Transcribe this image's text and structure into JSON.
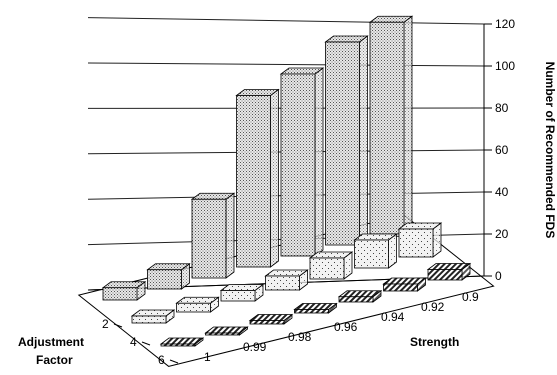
{
  "chart_data": {
    "type": "bar3d",
    "title": "",
    "zlabel": "Number of Recommended FDS",
    "xlabel": "Strength",
    "ylabel": "Adjustment Factor",
    "zlim": [
      0,
      120
    ],
    "z_ticks": [
      "0",
      "20",
      "40",
      "60",
      "80",
      "100",
      "120"
    ],
    "strength_labels": [
      "1",
      "0.99",
      "0.98",
      "0.96",
      "0.94",
      "0.92",
      "0.9"
    ],
    "adjustment_labels": [
      "2",
      "4",
      "6"
    ],
    "grid": true,
    "series": [
      {
        "adjustment": "2",
        "values": [
          7,
          11,
          45,
          98,
          104,
          116,
          121
        ]
      },
      {
        "adjustment": "4",
        "values": [
          4,
          5,
          6,
          8,
          12,
          16,
          16
        ]
      },
      {
        "adjustment": "6",
        "values": [
          1,
          1,
          2,
          2,
          3,
          4,
          6
        ]
      }
    ],
    "colors": {
      "front_fill": "#d2d2d2",
      "top_fill": "#efefef",
      "side_fill": "#8c8c8c",
      "grid": "#222222"
    }
  }
}
